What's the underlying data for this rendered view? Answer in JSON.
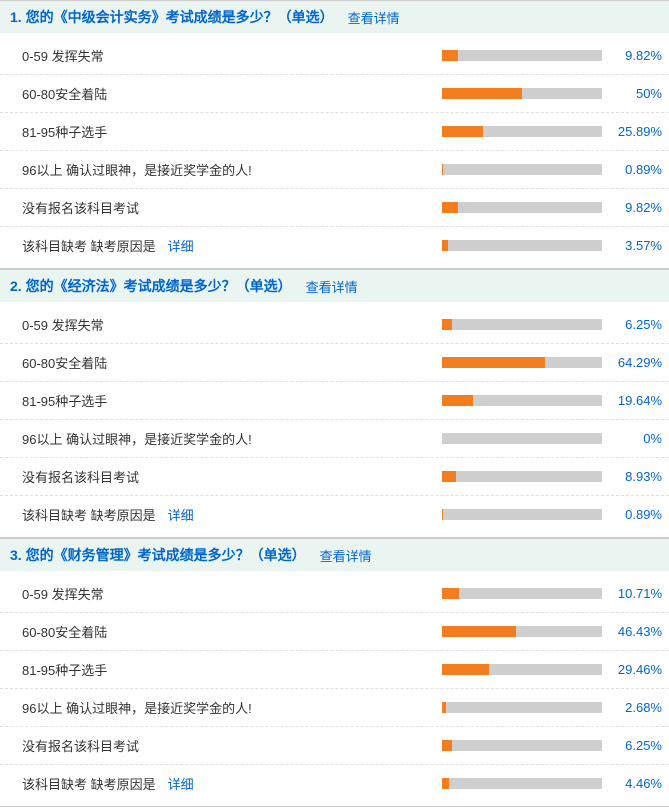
{
  "detail_link_label": "查看详情",
  "inline_detail_label": "详细",
  "bar_track_color": "#cfcfcf",
  "bar_fill_color": "#f47d20",
  "link_color": "#0066cc",
  "header_bg": "#eaf4f0",
  "questions": [
    {
      "number": "1.",
      "title": "您的《中级会计实务》考试成绩是多少？（单选）",
      "options": [
        {
          "label": "0-59 发挥失常",
          "pct": 9.82,
          "pct_text": "9.82%"
        },
        {
          "label": "60-80安全着陆",
          "pct": 50,
          "pct_text": "50%"
        },
        {
          "label": "81-95种子选手",
          "pct": 25.89,
          "pct_text": "25.89%"
        },
        {
          "label": "96以上 确认过眼神，是接近奖学金的人!",
          "pct": 0.89,
          "pct_text": "0.89%"
        },
        {
          "label": "没有报名该科目考试",
          "pct": 9.82,
          "pct_text": "9.82%"
        },
        {
          "label": "该科目缺考 缺考原因是",
          "pct": 3.57,
          "pct_text": "3.57%",
          "has_inline_link": true
        }
      ]
    },
    {
      "number": "2.",
      "title": "您的《经济法》考试成绩是多少？（单选）",
      "options": [
        {
          "label": "0-59 发挥失常",
          "pct": 6.25,
          "pct_text": "6.25%"
        },
        {
          "label": "60-80安全着陆",
          "pct": 64.29,
          "pct_text": "64.29%"
        },
        {
          "label": "81-95种子选手",
          "pct": 19.64,
          "pct_text": "19.64%"
        },
        {
          "label": "96以上 确认过眼神，是接近奖学金的人!",
          "pct": 0,
          "pct_text": "0%"
        },
        {
          "label": "没有报名该科目考试",
          "pct": 8.93,
          "pct_text": "8.93%"
        },
        {
          "label": "该科目缺考 缺考原因是",
          "pct": 0.89,
          "pct_text": "0.89%",
          "has_inline_link": true
        }
      ]
    },
    {
      "number": "3.",
      "title": "您的《财务管理》考试成绩是多少？（单选）",
      "options": [
        {
          "label": "0-59 发挥失常",
          "pct": 10.71,
          "pct_text": "10.71%"
        },
        {
          "label": "60-80安全着陆",
          "pct": 46.43,
          "pct_text": "46.43%"
        },
        {
          "label": "81-95种子选手",
          "pct": 29.46,
          "pct_text": "29.46%"
        },
        {
          "label": "96以上 确认过眼神，是接近奖学金的人!",
          "pct": 2.68,
          "pct_text": "2.68%"
        },
        {
          "label": "没有报名该科目考试",
          "pct": 6.25,
          "pct_text": "6.25%"
        },
        {
          "label": "该科目缺考 缺考原因是",
          "pct": 4.46,
          "pct_text": "4.46%",
          "has_inline_link": true
        }
      ]
    }
  ]
}
